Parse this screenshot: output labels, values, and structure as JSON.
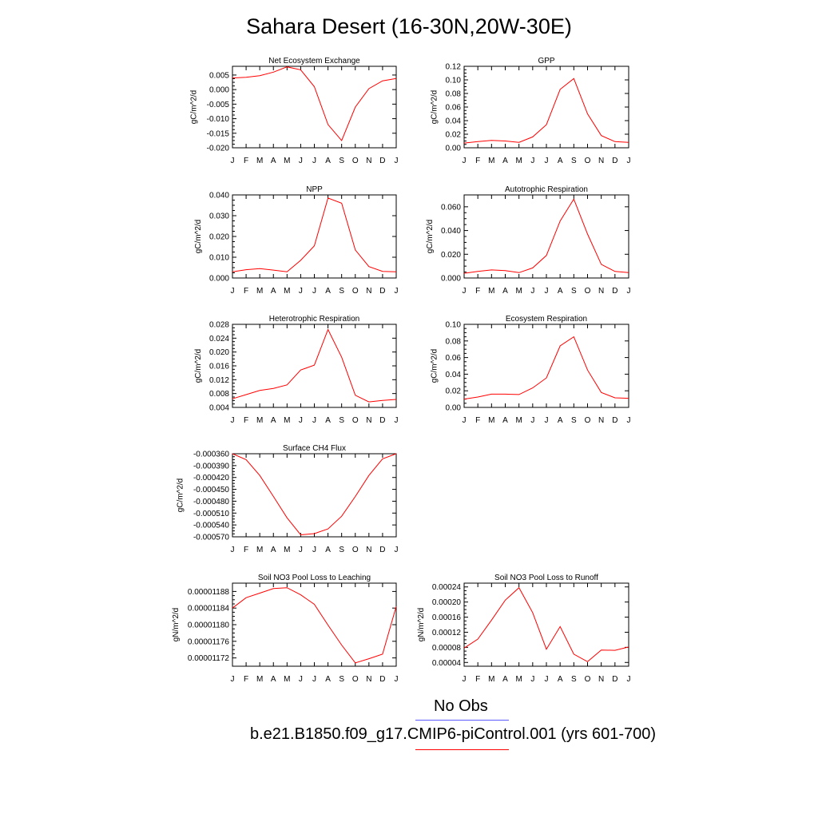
{
  "title": "Sahara Desert (16-30N,20W-30E)",
  "months": [
    "J",
    "F",
    "M",
    "A",
    "M",
    "J",
    "J",
    "A",
    "S",
    "O",
    "N",
    "D",
    "J"
  ],
  "colors": {
    "model": "#ff0000",
    "obs": "#5a5aff",
    "axis": "#000000"
  },
  "legend": {
    "obs_label": "No Obs",
    "model_label": "b.e21.B1850.f09_g17.CMIP6-piControl.001 (yrs 601-700)"
  },
  "chart_data": [
    {
      "type": "line",
      "title": "Net Ecosystem Exchange",
      "ylabel": "gC/m^2/d",
      "ylim": [
        -0.02,
        0.008
      ],
      "yticks": [
        -0.02,
        -0.015,
        -0.01,
        -0.005,
        0.0,
        0.005
      ],
      "ytick_labels": [
        "-0.020",
        "-0.015",
        "-0.010",
        "-0.005",
        "0.000",
        "0.005"
      ],
      "values": [
        0.004,
        0.0042,
        0.0048,
        0.006,
        0.0078,
        0.0068,
        0.001,
        -0.012,
        -0.0175,
        -0.006,
        0.0003,
        0.003,
        0.0038
      ]
    },
    {
      "type": "line",
      "title": "GPP",
      "ylabel": "gC/m^2/d",
      "ylim": [
        0,
        0.12
      ],
      "yticks": [
        0,
        0.02,
        0.04,
        0.06,
        0.08,
        0.1,
        0.12
      ],
      "ytick_labels": [
        "0.00",
        "0.02",
        "0.04",
        "0.06",
        "0.08",
        "0.10",
        "0.12"
      ],
      "values": [
        0.007,
        0.009,
        0.011,
        0.01,
        0.008,
        0.016,
        0.034,
        0.086,
        0.102,
        0.05,
        0.018,
        0.009,
        0.008
      ]
    },
    {
      "type": "line",
      "title": "NPP",
      "ylabel": "gC/m^2/d",
      "ylim": [
        0,
        0.04
      ],
      "yticks": [
        0,
        0.01,
        0.02,
        0.03,
        0.04
      ],
      "ytick_labels": [
        "0.000",
        "0.010",
        "0.020",
        "0.030",
        "0.040"
      ],
      "values": [
        0.003,
        0.004,
        0.0045,
        0.0038,
        0.003,
        0.0085,
        0.0155,
        0.0385,
        0.036,
        0.0135,
        0.0055,
        0.0032,
        0.003
      ]
    },
    {
      "type": "line",
      "title": "Autotrophic Respiration",
      "ylabel": "gC/m^2/d",
      "ylim": [
        0,
        0.07
      ],
      "yticks": [
        0,
        0.02,
        0.04,
        0.06
      ],
      "ytick_labels": [
        "0.000",
        "0.020",
        "0.040",
        "0.060"
      ],
      "values": [
        0.004,
        0.0055,
        0.0068,
        0.0062,
        0.0045,
        0.0085,
        0.019,
        0.048,
        0.0665,
        0.037,
        0.0115,
        0.0055,
        0.0045
      ]
    },
    {
      "type": "line",
      "title": "Heterotrophic Respiration",
      "ylabel": "gC/m^2/d",
      "ylim": [
        0.004,
        0.028
      ],
      "yticks": [
        0.004,
        0.008,
        0.012,
        0.016,
        0.02,
        0.024,
        0.028
      ],
      "ytick_labels": [
        "0.004",
        "0.008",
        "0.012",
        "0.016",
        "0.020",
        "0.024",
        "0.028"
      ],
      "values": [
        0.0065,
        0.0077,
        0.0089,
        0.0095,
        0.0105,
        0.0148,
        0.0162,
        0.0265,
        0.0185,
        0.0075,
        0.0056,
        0.006,
        0.0063
      ]
    },
    {
      "type": "line",
      "title": "Ecosystem Respiration",
      "ylabel": "gC/m^2/d",
      "ylim": [
        0,
        0.1
      ],
      "yticks": [
        0,
        0.02,
        0.04,
        0.06,
        0.08,
        0.1
      ],
      "ytick_labels": [
        "0.00",
        "0.02",
        "0.04",
        "0.06",
        "0.08",
        "0.10"
      ],
      "values": [
        0.01,
        0.0125,
        0.016,
        0.016,
        0.0155,
        0.0235,
        0.0355,
        0.074,
        0.085,
        0.045,
        0.018,
        0.0115,
        0.011
      ]
    },
    {
      "type": "line",
      "title": "Surface CH4 Flux",
      "ylabel": "gC/m^2/d",
      "ylim": [
        -0.00057,
        -0.00036
      ],
      "yticks": [
        -0.00057,
        -0.00054,
        -0.00051,
        -0.00048,
        -0.00045,
        -0.00042,
        -0.00039,
        -0.00036
      ],
      "ytick_labels": [
        "-0.000570",
        "-0.000540",
        "-0.000510",
        "-0.000480",
        "-0.000450",
        "-0.000420",
        "-0.000390",
        "-0.000360"
      ],
      "values": [
        -0.00036,
        -0.000375,
        -0.000415,
        -0.000468,
        -0.000522,
        -0.000565,
        -0.000562,
        -0.00055,
        -0.000518,
        -0.000468,
        -0.000415,
        -0.000373,
        -0.00036
      ]
    },
    {
      "type": "line",
      "title": "Soil NO3 Pool Loss to Leaching",
      "ylabel": "gN/m^2/d",
      "ylim": [
        1.17e-05,
        1.19e-05
      ],
      "yticks": [
        1.172e-05,
        1.176e-05,
        1.18e-05,
        1.184e-05,
        1.188e-05
      ],
      "ytick_labels": [
        "0.00001172",
        "0.00001176",
        "0.00001180",
        "0.00001184",
        "0.00001188"
      ],
      "values": [
        1.184e-05,
        1.1865e-05,
        1.1876e-05,
        1.1887e-05,
        1.1889e-05,
        1.1872e-05,
        1.1849e-05,
        1.1799e-05,
        1.1751e-05,
        1.1708e-05,
        1.1718e-05,
        1.1729e-05,
        1.1844e-05
      ]
    },
    {
      "type": "line",
      "title": "Soil NO3 Pool Loss to Runoff",
      "ylabel": "gN/m^2/d",
      "ylim": [
        3e-05,
        0.00025
      ],
      "yticks": [
        4e-05,
        8e-05,
        0.00012,
        0.00016,
        0.0002,
        0.00024
      ],
      "ytick_labels": [
        "0.00004",
        "0.00008",
        "0.00012",
        "0.00016",
        "0.00020",
        "0.00024"
      ],
      "values": [
        7.8e-05,
        0.000102,
        0.000152,
        0.000205,
        0.000238,
        0.000172,
        7.5e-05,
        0.000135,
        6.2e-05,
        4.2e-05,
        7.3e-05,
        7.2e-05,
        8.1e-05
      ]
    }
  ]
}
